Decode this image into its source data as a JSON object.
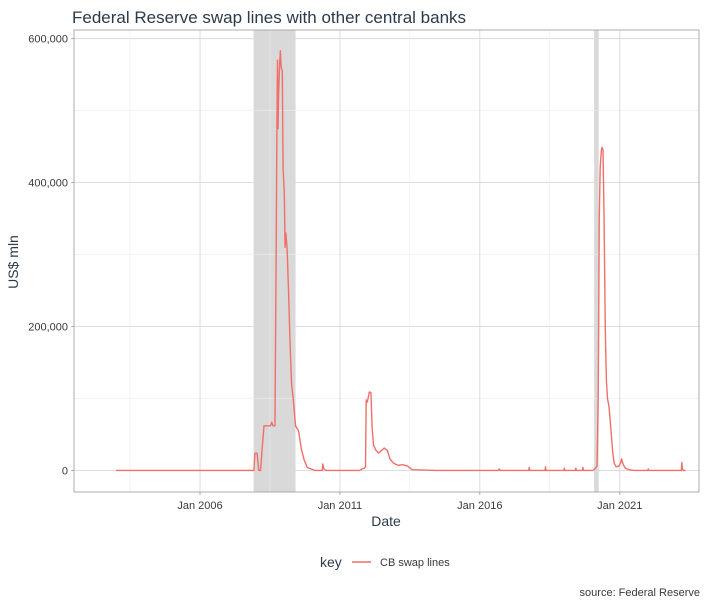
{
  "chart_data": {
    "type": "line",
    "title": "Federal Reserve swap lines with other central banks",
    "xlabel": "Date",
    "ylabel": "US$ mln",
    "x_ticks": [
      "Jan 2006",
      "Jan 2011",
      "Jan 2016",
      "Jan 2021"
    ],
    "y_ticks": [
      "0",
      "200,000",
      "400,000",
      "600,000"
    ],
    "ylim": [
      -30000,
      612000
    ],
    "grid": true,
    "legend_title": "key",
    "legend_position": "bottom",
    "caption": "source: Federal Reserve",
    "shaded_periods": [
      {
        "start": "2007-12-01",
        "end": "2009-06-01"
      },
      {
        "start": "2020-02-01",
        "end": "2020-04-01"
      }
    ],
    "series": [
      {
        "name": "CB swap lines",
        "color": "#f06f6a",
        "points": [
          [
            "2003-01-01",
            0
          ],
          [
            "2007-12-05",
            0
          ],
          [
            "2007-12-19",
            24000
          ],
          [
            "2008-01-16",
            24000
          ],
          [
            "2008-02-06",
            0
          ],
          [
            "2008-03-01",
            0
          ],
          [
            "2008-03-26",
            36000
          ],
          [
            "2008-04-15",
            62000
          ],
          [
            "2008-07-10",
            62000
          ],
          [
            "2008-07-25",
            67000
          ],
          [
            "2008-08-10",
            62000
          ],
          [
            "2008-09-05",
            62000
          ],
          [
            "2008-09-20",
            290000
          ],
          [
            "2008-10-01",
            480000
          ],
          [
            "2008-10-08",
            570000
          ],
          [
            "2008-10-15",
            475000
          ],
          [
            "2008-10-22",
            520000
          ],
          [
            "2008-11-05",
            565000
          ],
          [
            "2008-11-15",
            583000
          ],
          [
            "2008-11-25",
            560000
          ],
          [
            "2008-12-10",
            555000
          ],
          [
            "2008-12-20",
            420000
          ],
          [
            "2009-01-05",
            385000
          ],
          [
            "2009-01-15",
            310000
          ],
          [
            "2009-01-25",
            330000
          ],
          [
            "2009-02-10",
            310000
          ],
          [
            "2009-03-01",
            250000
          ],
          [
            "2009-03-20",
            180000
          ],
          [
            "2009-04-10",
            120000
          ],
          [
            "2009-05-01",
            100000
          ],
          [
            "2009-06-01",
            62000
          ],
          [
            "2009-07-10",
            55000
          ],
          [
            "2009-08-15",
            30000
          ],
          [
            "2009-09-20",
            15000
          ],
          [
            "2009-11-01",
            4000
          ],
          [
            "2010-01-15",
            1000
          ],
          [
            "2010-02-01",
            0
          ],
          [
            "2010-05-15",
            0
          ],
          [
            "2010-05-22",
            9000
          ],
          [
            "2010-06-05",
            2000
          ],
          [
            "2010-07-01",
            0
          ],
          [
            "2011-09-15",
            0
          ],
          [
            "2011-10-15",
            2000
          ],
          [
            "2011-11-15",
            3000
          ],
          [
            "2011-12-01",
            5000
          ],
          [
            "2011-12-10",
            98000
          ],
          [
            "2011-12-25",
            95000
          ],
          [
            "2012-01-20",
            109000
          ],
          [
            "2012-02-10",
            108000
          ],
          [
            "2012-02-25",
            60000
          ],
          [
            "2012-03-15",
            35000
          ],
          [
            "2012-04-15",
            28000
          ],
          [
            "2012-05-20",
            24000
          ],
          [
            "2012-06-20",
            27000
          ],
          [
            "2012-08-01",
            31000
          ],
          [
            "2012-09-10",
            28000
          ],
          [
            "2012-10-15",
            16000
          ],
          [
            "2012-12-01",
            10000
          ],
          [
            "2013-02-01",
            7000
          ],
          [
            "2013-04-01",
            8000
          ],
          [
            "2013-06-01",
            6000
          ],
          [
            "2013-08-01",
            1000
          ],
          [
            "2014-06-01",
            0
          ],
          [
            "2016-09-01",
            0
          ],
          [
            "2016-09-10",
            2000
          ],
          [
            "2016-09-20",
            0
          ],
          [
            "2017-10-01",
            0
          ],
          [
            "2017-10-08",
            4000
          ],
          [
            "2017-10-15",
            0
          ],
          [
            "2018-05-01",
            0
          ],
          [
            "2018-05-08",
            5000
          ],
          [
            "2018-05-15",
            0
          ],
          [
            "2019-01-01",
            0
          ],
          [
            "2019-01-08",
            3000
          ],
          [
            "2019-01-15",
            0
          ],
          [
            "2019-06-01",
            0
          ],
          [
            "2019-06-08",
            3000
          ],
          [
            "2019-06-15",
            0
          ],
          [
            "2019-09-01",
            0
          ],
          [
            "2019-09-08",
            4000
          ],
          [
            "2019-09-15",
            0
          ],
          [
            "2020-01-15",
            0
          ],
          [
            "2020-02-10",
            2000
          ],
          [
            "2020-03-10",
            6000
          ],
          [
            "2020-03-25",
            100000
          ],
          [
            "2020-04-01",
            210000
          ],
          [
            "2020-04-08",
            350000
          ],
          [
            "2020-04-20",
            420000
          ],
          [
            "2020-05-05",
            444000
          ],
          [
            "2020-05-15",
            449000
          ],
          [
            "2020-05-27",
            445000
          ],
          [
            "2020-06-10",
            350000
          ],
          [
            "2020-06-25",
            200000
          ],
          [
            "2020-07-10",
            125000
          ],
          [
            "2020-07-25",
            100000
          ],
          [
            "2020-08-15",
            87000
          ],
          [
            "2020-09-05",
            60000
          ],
          [
            "2020-10-01",
            25000
          ],
          [
            "2020-10-20",
            10000
          ],
          [
            "2020-11-15",
            5000
          ],
          [
            "2020-12-20",
            6000
          ],
          [
            "2021-01-10",
            10000
          ],
          [
            "2021-01-25",
            16000
          ],
          [
            "2021-02-15",
            8000
          ],
          [
            "2021-03-15",
            3000
          ],
          [
            "2021-05-01",
            1000
          ],
          [
            "2021-07-01",
            0
          ],
          [
            "2022-01-01",
            0
          ],
          [
            "2022-01-08",
            2000
          ],
          [
            "2022-01-15",
            0
          ],
          [
            "2023-03-15",
            0
          ],
          [
            "2023-03-22",
            11000
          ],
          [
            "2023-03-29",
            2000
          ],
          [
            "2023-04-10",
            0
          ],
          [
            "2023-05-10",
            0
          ]
        ]
      }
    ]
  }
}
